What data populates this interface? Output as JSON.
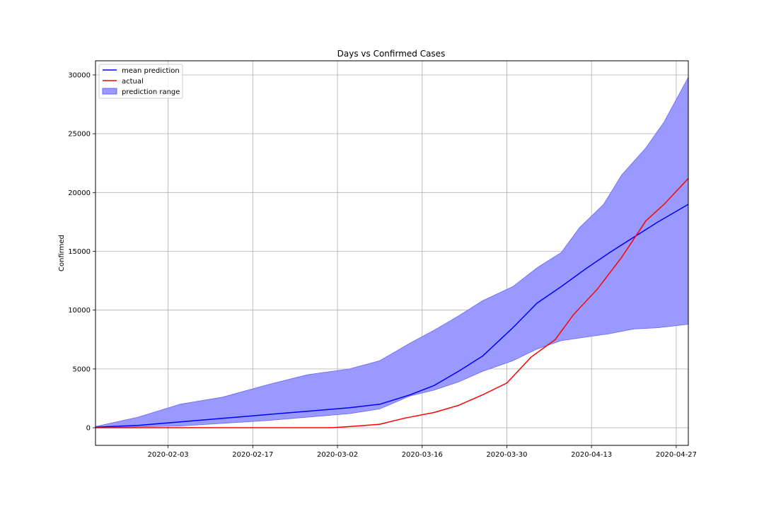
{
  "chart_data": {
    "type": "line",
    "title": "Days vs Confirmed Cases",
    "xlabel": "",
    "ylabel": "Confirmed",
    "x_start": "2020-01-22",
    "x_end": "2020-04-29",
    "xlim": [
      "2020-01-22",
      "2020-04-29"
    ],
    "ylim": [
      -1500,
      31200
    ],
    "x_ticks": [
      "2020-02-03",
      "2020-02-17",
      "2020-03-02",
      "2020-03-16",
      "2020-03-30",
      "2020-04-13",
      "2020-04-27"
    ],
    "y_ticks": [
      0,
      5000,
      10000,
      15000,
      20000,
      25000,
      30000
    ],
    "grid": true,
    "legend_position": "top-left",
    "colors": {
      "mean": "#0000ff",
      "actual": "#ff0000",
      "range_fill": "#9999ff",
      "range_edge": "#6666ff"
    },
    "series": [
      {
        "name": "mean prediction",
        "type": "line",
        "points": [
          [
            "2020-01-22",
            50
          ],
          [
            "2020-01-29",
            200
          ],
          [
            "2020-02-05",
            500
          ],
          [
            "2020-02-12",
            800
          ],
          [
            "2020-02-19",
            1100
          ],
          [
            "2020-02-26",
            1400
          ],
          [
            "2020-03-04",
            1700
          ],
          [
            "2020-03-09",
            2000
          ],
          [
            "2020-03-14",
            2800
          ],
          [
            "2020-03-18",
            3600
          ],
          [
            "2020-03-22",
            4800
          ],
          [
            "2020-03-26",
            6100
          ],
          [
            "2020-03-31",
            8500
          ],
          [
            "2020-04-04",
            10600
          ],
          [
            "2020-04-08",
            12000
          ],
          [
            "2020-04-12",
            13500
          ],
          [
            "2020-04-16",
            14900
          ],
          [
            "2020-04-20",
            16200
          ],
          [
            "2020-04-24",
            17500
          ],
          [
            "2020-04-29",
            19000
          ]
        ]
      },
      {
        "name": "actual",
        "type": "line",
        "points": [
          [
            "2020-01-22",
            0
          ],
          [
            "2020-03-01",
            0
          ],
          [
            "2020-03-04",
            100
          ],
          [
            "2020-03-09",
            300
          ],
          [
            "2020-03-13",
            800
          ],
          [
            "2020-03-18",
            1300
          ],
          [
            "2020-03-22",
            1900
          ],
          [
            "2020-03-26",
            2800
          ],
          [
            "2020-03-30",
            3800
          ],
          [
            "2020-04-03",
            6000
          ],
          [
            "2020-04-07",
            7500
          ],
          [
            "2020-04-10",
            9600
          ],
          [
            "2020-04-14",
            11800
          ],
          [
            "2020-04-18",
            14500
          ],
          [
            "2020-04-22",
            17600
          ],
          [
            "2020-04-25",
            19000
          ],
          [
            "2020-04-29",
            21200
          ]
        ]
      },
      {
        "name": "prediction range",
        "type": "band",
        "upper": [
          [
            "2020-01-22",
            100
          ],
          [
            "2020-01-29",
            900
          ],
          [
            "2020-02-05",
            2000
          ],
          [
            "2020-02-12",
            2600
          ],
          [
            "2020-02-19",
            3600
          ],
          [
            "2020-02-26",
            4500
          ],
          [
            "2020-03-04",
            5000
          ],
          [
            "2020-03-09",
            5700
          ],
          [
            "2020-03-14",
            7200
          ],
          [
            "2020-03-18",
            8300
          ],
          [
            "2020-03-22",
            9500
          ],
          [
            "2020-03-26",
            10800
          ],
          [
            "2020-03-31",
            12000
          ],
          [
            "2020-04-04",
            13600
          ],
          [
            "2020-04-08",
            14900
          ],
          [
            "2020-04-11",
            17000
          ],
          [
            "2020-04-15",
            19000
          ],
          [
            "2020-04-18",
            21500
          ],
          [
            "2020-04-22",
            23800
          ],
          [
            "2020-04-25",
            26000
          ],
          [
            "2020-04-29",
            29800
          ]
        ],
        "lower": [
          [
            "2020-01-22",
            0
          ],
          [
            "2020-02-05",
            150
          ],
          [
            "2020-02-19",
            600
          ],
          [
            "2020-03-04",
            1200
          ],
          [
            "2020-03-09",
            1600
          ],
          [
            "2020-03-14",
            2700
          ],
          [
            "2020-03-18",
            3200
          ],
          [
            "2020-03-22",
            3900
          ],
          [
            "2020-03-26",
            4800
          ],
          [
            "2020-03-31",
            5700
          ],
          [
            "2020-04-04",
            6700
          ],
          [
            "2020-04-08",
            7400
          ],
          [
            "2020-04-12",
            7700
          ],
          [
            "2020-04-16",
            8000
          ],
          [
            "2020-04-20",
            8400
          ],
          [
            "2020-04-24",
            8500
          ],
          [
            "2020-04-29",
            8800
          ]
        ]
      }
    ]
  }
}
